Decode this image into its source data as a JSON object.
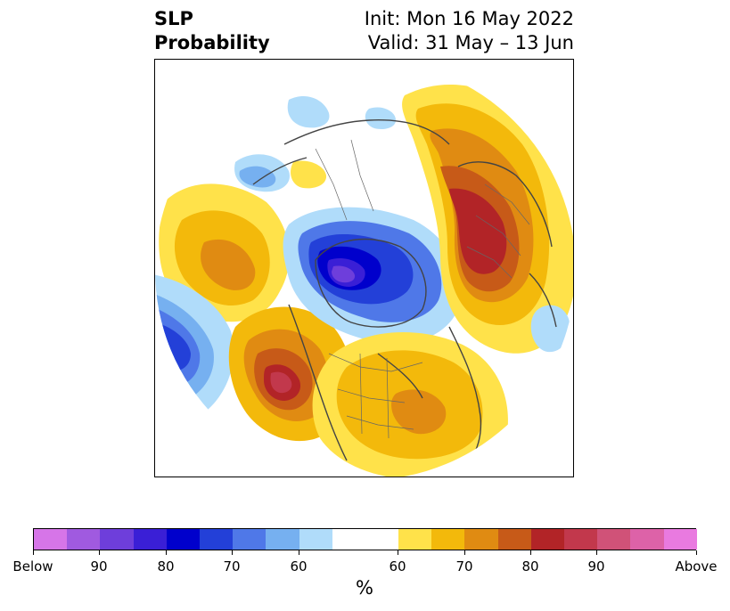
{
  "title": {
    "line1": "SLP",
    "line2": "Probability",
    "init": "Init: Mon 16 May 2022",
    "valid": "Valid: 31 May – 13 Jun"
  },
  "colorbar": {
    "unit": "%",
    "colors": [
      "#d675e8",
      "#a05ae0",
      "#6e3edb",
      "#3a1fd6",
      "#0000cc",
      "#2340d8",
      "#4f78e8",
      "#76b0f0",
      "#b0dcfa",
      "#ffffff",
      "#ffe24a",
      "#f3b90b",
      "#e08b12",
      "#c75a18",
      "#b22427",
      "#c2384c",
      "#d05278",
      "#dd62a8",
      "#e97ae0"
    ],
    "widths": [
      1,
      1,
      1,
      1,
      1,
      1,
      1,
      1,
      1,
      2,
      1,
      1,
      1,
      1,
      1,
      1,
      1,
      1,
      1
    ],
    "tick_labels": [
      "Below",
      "90",
      "80",
      "70",
      "60",
      "60",
      "70",
      "80",
      "90",
      "Above"
    ]
  },
  "map": {
    "projection": "polar-stereographic-north",
    "features": [
      "coastlines",
      "country-borders",
      "state-borders"
    ],
    "anomalies": [
      {
        "region": "north-pacific",
        "sign": "above",
        "peak": "80"
      },
      {
        "region": "arctic-ocean",
        "sign": "below",
        "peak": "90"
      },
      {
        "region": "eastern-europe-russia",
        "sign": "above",
        "peak": "80"
      },
      {
        "region": "north-atlantic",
        "sign": "above",
        "peak": "60"
      },
      {
        "region": "central-pacific",
        "sign": "below",
        "peak": "80"
      }
    ]
  }
}
